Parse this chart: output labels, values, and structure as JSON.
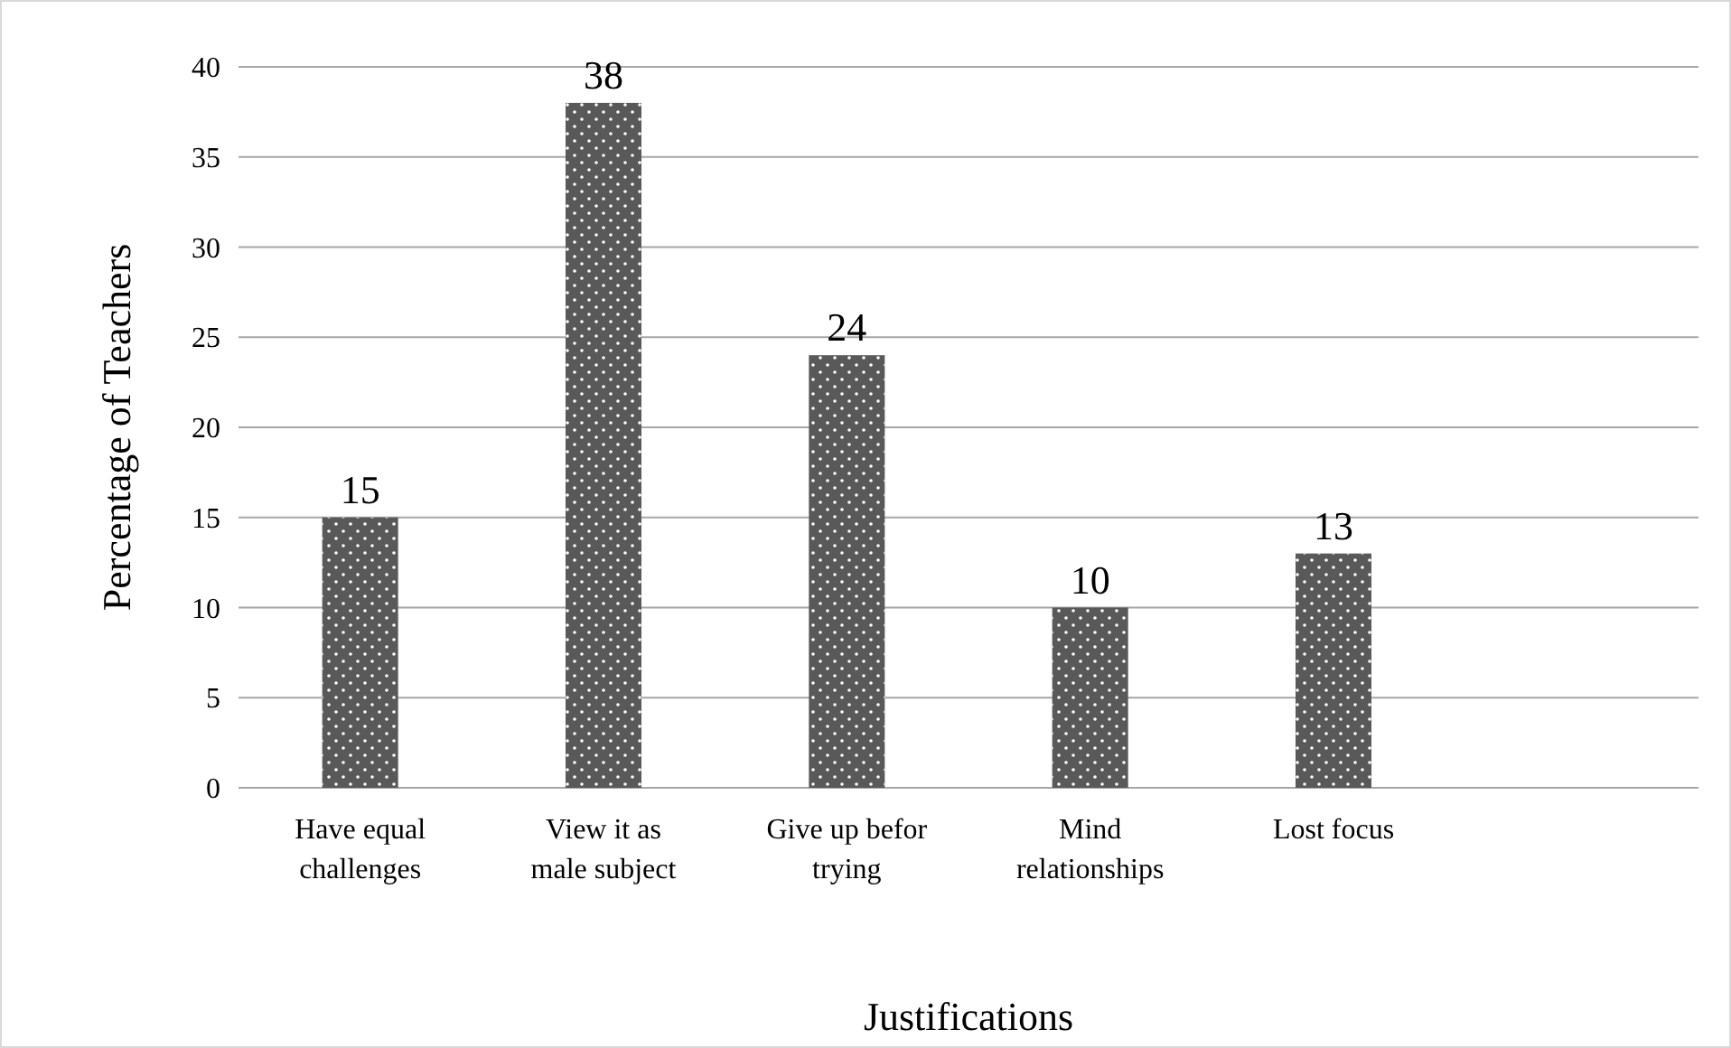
{
  "chart_data": {
    "type": "bar",
    "xlabel": "Justifications",
    "ylabel": "Percentage of Teachers",
    "categories": [
      "Have equal challenges",
      "View it as male subject",
      "Give up befor trying",
      "Mind relationships",
      "Lost focus",
      null
    ],
    "values": [
      15,
      38,
      24,
      10,
      13,
      null
    ],
    "color": "#595959",
    "ylim": [
      0,
      40
    ],
    "yticks": [
      0,
      5,
      10,
      15,
      20,
      25,
      30,
      35,
      40
    ],
    "grid": "y",
    "data_labels": true
  }
}
